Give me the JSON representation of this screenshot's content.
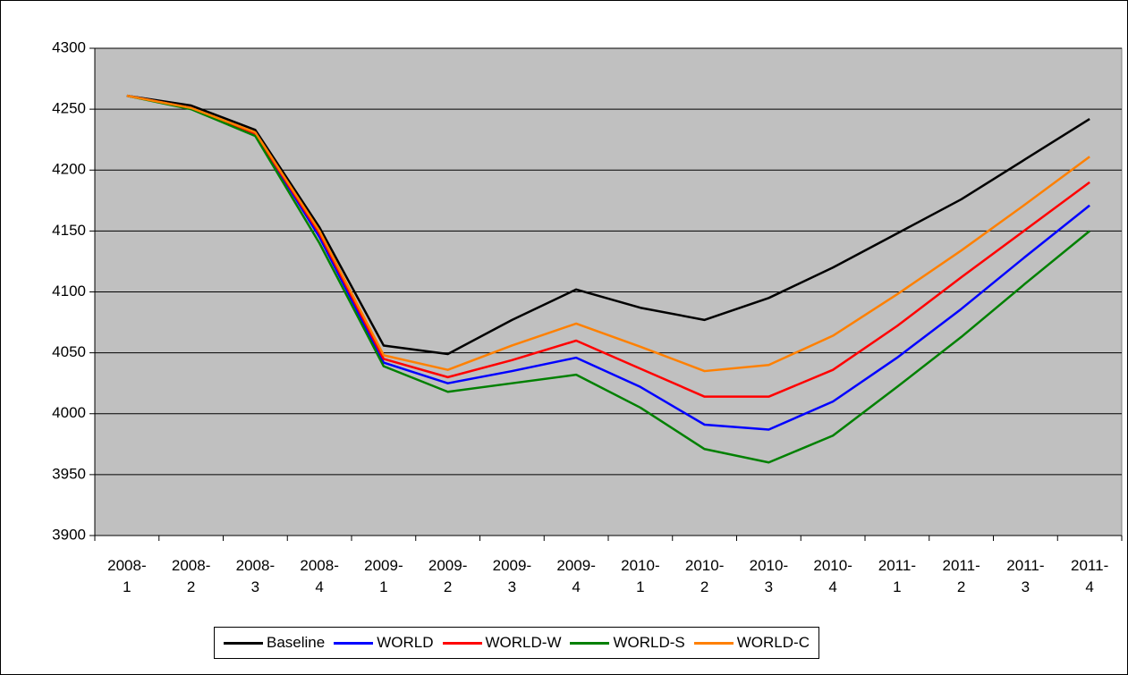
{
  "chart_data": {
    "type": "line",
    "categories": [
      "2008-1",
      "2008-2",
      "2008-3",
      "2008-4",
      "2009-1",
      "2009-2",
      "2009-3",
      "2009-4",
      "2010-1",
      "2010-2",
      "2010-3",
      "2010-4",
      "2011-1",
      "2011-2",
      "2011-3",
      "2011-4"
    ],
    "series": [
      {
        "name": "Baseline",
        "color": "#000000",
        "values": [
          4261,
          4253,
          4233,
          4153,
          4056,
          4049,
          4077,
          4102,
          4087,
          4077,
          4095,
          4120,
          4148,
          4176,
          4209,
          4242
        ]
      },
      {
        "name": "WORLD",
        "color": "#0000ff",
        "values": [
          4261,
          4251,
          4230,
          4145,
          4042,
          4025,
          4035,
          4046,
          4022,
          3991,
          3987,
          4010,
          4046,
          4086,
          4129,
          4171
        ]
      },
      {
        "name": "WORLD-W",
        "color": "#ff0000",
        "values": [
          4261,
          4251,
          4230,
          4148,
          4045,
          4030,
          4044,
          4060,
          4037,
          4014,
          4014,
          4036,
          4072,
          4112,
          4151,
          4190
        ]
      },
      {
        "name": "WORLD-S",
        "color": "#008000",
        "values": [
          4261,
          4250,
          4228,
          4140,
          4039,
          4018,
          4025,
          4032,
          4005,
          3971,
          3960,
          3982,
          4022,
          4063,
          4107,
          4150
        ]
      },
      {
        "name": "WORLD-C",
        "color": "#ff8000",
        "values": [
          4261,
          4251,
          4231,
          4150,
          4048,
          4036,
          4056,
          4074,
          4055,
          4035,
          4040,
          4064,
          4098,
          4134,
          4172,
          4211
        ]
      }
    ],
    "ylim": [
      3900,
      4300
    ],
    "yticks": [
      3900,
      3950,
      4000,
      4050,
      4100,
      4150,
      4200,
      4250,
      4300
    ],
    "grid": true,
    "legend": "bottom"
  }
}
